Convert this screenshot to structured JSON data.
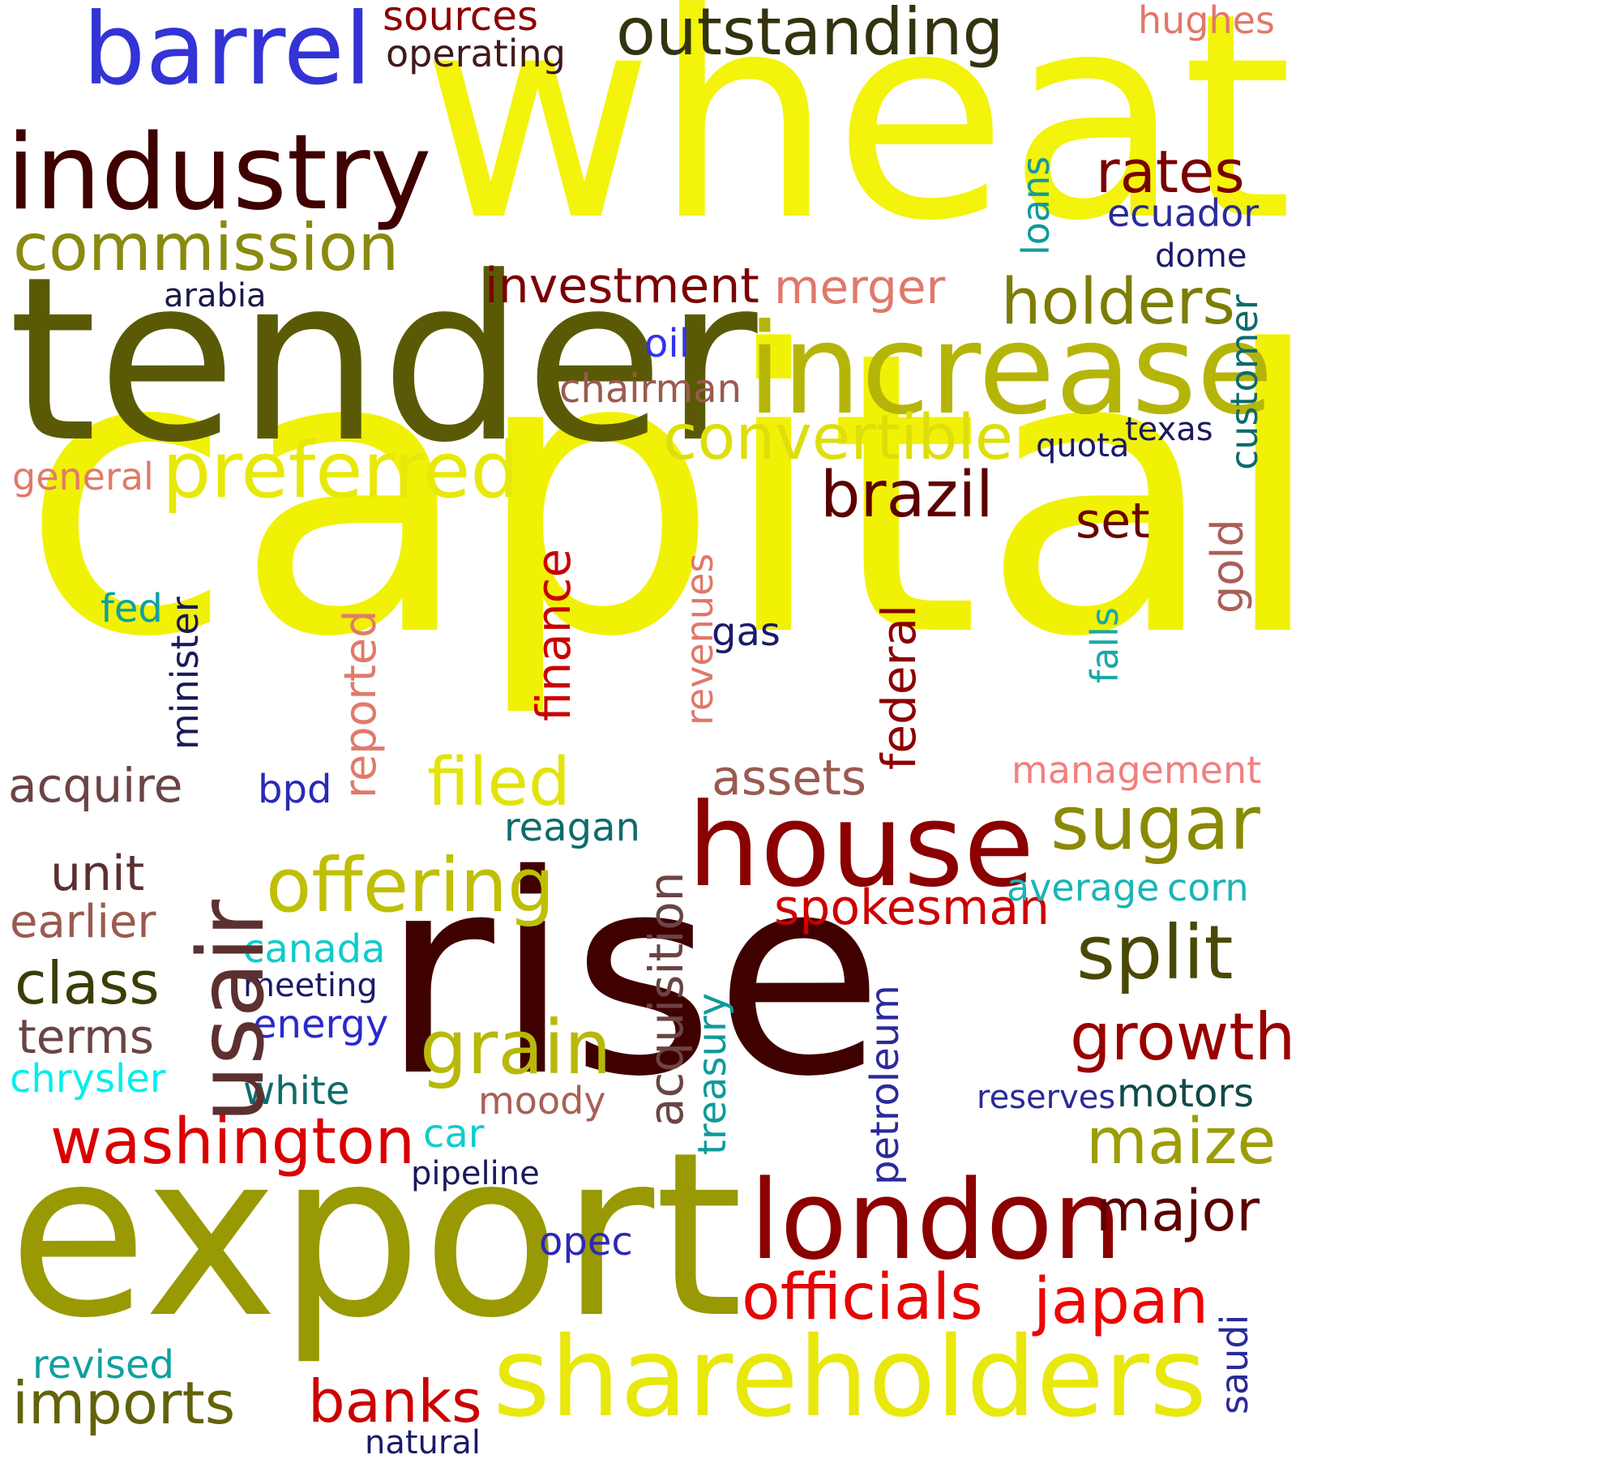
{
  "words": [
    {
      "text": "capital",
      "color": "#f1f106"
    },
    {
      "text": "wheat",
      "color": "#f3f30b"
    },
    {
      "text": "rise",
      "color": "#3f0000"
    },
    {
      "text": "tender",
      "color": "#5a5a06"
    },
    {
      "text": "export",
      "color": "#999903"
    },
    {
      "text": "increase",
      "color": "#b5b508"
    },
    {
      "text": "shareholders",
      "color": "#e8e80c"
    },
    {
      "text": "house",
      "color": "#8b0000"
    },
    {
      "text": "london",
      "color": "#8b0000"
    },
    {
      "text": "industry",
      "color": "#3f0000"
    },
    {
      "text": "barrel",
      "color": "#3333d6"
    },
    {
      "text": "usair",
      "color": "#5c3030"
    },
    {
      "text": "preferred",
      "color": "#e8e808"
    },
    {
      "text": "outstanding",
      "color": "#33330f"
    },
    {
      "text": "commission",
      "color": "#8a8a10"
    },
    {
      "text": "convertible",
      "color": "#dede0a"
    },
    {
      "text": "holders",
      "color": "#7d7d05"
    },
    {
      "text": "offering",
      "color": "#bfbf06"
    },
    {
      "text": "sugar",
      "color": "#8a8a05"
    },
    {
      "text": "split",
      "color": "#494905"
    },
    {
      "text": "grain",
      "color": "#b8b80a"
    },
    {
      "text": "growth",
      "color": "#990000"
    },
    {
      "text": "officials",
      "color": "#e60505"
    },
    {
      "text": "japan",
      "color": "#ee0505"
    },
    {
      "text": "washington",
      "color": "#d90000"
    },
    {
      "text": "maize",
      "color": "#9d9d08"
    },
    {
      "text": "major",
      "color": "#5c0000"
    },
    {
      "text": "filed",
      "color": "#e3e30a"
    },
    {
      "text": "brazil",
      "color": "#5c0000"
    },
    {
      "text": "rates",
      "color": "#7a0000"
    },
    {
      "text": "investment",
      "color": "#7a0000"
    },
    {
      "text": "acquisition",
      "color": "#6b4444"
    },
    {
      "text": "class",
      "color": "#3c3c05"
    },
    {
      "text": "imports",
      "color": "#62620a"
    },
    {
      "text": "banks",
      "color": "#cc0000"
    },
    {
      "text": "spokesman",
      "color": "#cc0000"
    },
    {
      "text": "finance",
      "color": "#c90000"
    },
    {
      "text": "federal",
      "color": "#8b0000"
    },
    {
      "text": "reported",
      "color": "#e07a6a"
    },
    {
      "text": "assets",
      "color": "#9a5a50"
    },
    {
      "text": "merger",
      "color": "#e0786a"
    },
    {
      "text": "earlier",
      "color": "#9a5a50"
    },
    {
      "text": "acquire",
      "color": "#6b4444"
    },
    {
      "text": "unit",
      "color": "#5c3030"
    },
    {
      "text": "terms",
      "color": "#6b4444"
    },
    {
      "text": "chairman",
      "color": "#9a5a50"
    },
    {
      "text": "moody",
      "color": "#a86058"
    },
    {
      "text": "management",
      "color": "#f08080"
    },
    {
      "text": "general",
      "color": "#e07a6a"
    },
    {
      "text": "hughes",
      "color": "#e0786a"
    },
    {
      "text": "sources",
      "color": "#8b0000"
    },
    {
      "text": "operating",
      "color": "#3f1a1a"
    },
    {
      "text": "gold",
      "color": "#a86058"
    },
    {
      "text": "set",
      "color": "#6b0000"
    },
    {
      "text": "minister",
      "color": "#1a1a5c"
    },
    {
      "text": "revenues",
      "color": "#e0786a"
    },
    {
      "text": "treasury",
      "color": "#0f9a9a"
    },
    {
      "text": "petroleum",
      "color": "#2a2a9a"
    },
    {
      "text": "falls",
      "color": "#1aa8a8"
    },
    {
      "text": "loans",
      "color": "#109a9a"
    },
    {
      "text": "customer",
      "color": "#0f6b6b"
    },
    {
      "text": "saudi",
      "color": "#2a2a9a"
    },
    {
      "text": "ecuador",
      "color": "#2a2a9a"
    },
    {
      "text": "dome",
      "color": "#1a1a6b"
    },
    {
      "text": "oil",
      "color": "#3333ee"
    },
    {
      "text": "quota",
      "color": "#1a1a6b"
    },
    {
      "text": "texas",
      "color": "#1a1a5c"
    },
    {
      "text": "gas",
      "color": "#1a1a6b"
    },
    {
      "text": "fed",
      "color": "#0fa0a0"
    },
    {
      "text": "arabia",
      "color": "#1a1a4a"
    },
    {
      "text": "bpd",
      "color": "#2a2ab5"
    },
    {
      "text": "reagan",
      "color": "#0f6b6b"
    },
    {
      "text": "average",
      "color": "#1ab5b5"
    },
    {
      "text": "corn",
      "color": "#1ab5b5"
    },
    {
      "text": "canada",
      "color": "#10cccc"
    },
    {
      "text": "meeting",
      "color": "#1a1a6b"
    },
    {
      "text": "energy",
      "color": "#2a2ac9"
    },
    {
      "text": "chrysler",
      "color": "#00eeee"
    },
    {
      "text": "white",
      "color": "#0f6b6b"
    },
    {
      "text": "car",
      "color": "#10cccc"
    },
    {
      "text": "pipeline",
      "color": "#1a1a5c"
    },
    {
      "text": "reserves",
      "color": "#2a2a9a"
    },
    {
      "text": "motors",
      "color": "#0f4a4a"
    },
    {
      "text": "opec",
      "color": "#2a2ab5"
    },
    {
      "text": "revised",
      "color": "#10a0a0"
    },
    {
      "text": "natural",
      "color": "#1a1a6b"
    }
  ]
}
